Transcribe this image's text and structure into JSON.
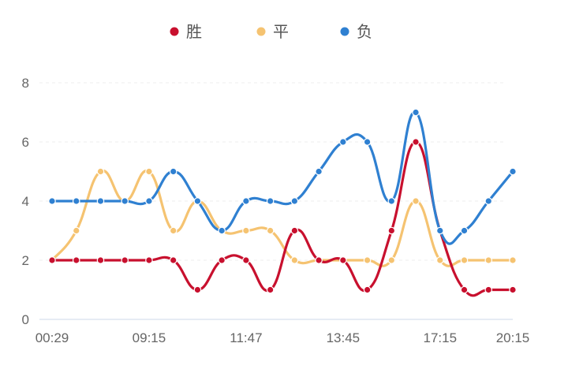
{
  "chart_data": {
    "type": "line",
    "smooth": true,
    "x": [
      "00:29",
      "",
      "",
      "",
      "09:15",
      "",
      "",
      "",
      "11:47",
      "",
      "",
      "",
      "13:45",
      "",
      "",
      "",
      "17:15",
      "",
      "",
      "20:15"
    ],
    "xtick_labels": [
      "00:29",
      "09:15",
      "11:47",
      "13:45",
      "17:15",
      "20:15"
    ],
    "xtick_indices": [
      0,
      4,
      8,
      12,
      16,
      19
    ],
    "yticks": [
      0,
      2,
      4,
      6,
      8
    ],
    "ylim": [
      0,
      8
    ],
    "grid": "horizontal-dashed",
    "legend": "top-center",
    "series": [
      {
        "name": "胜",
        "color": "#c8102e",
        "values": [
          2,
          2,
          2,
          2,
          2,
          2,
          1,
          2,
          2,
          1,
          3,
          2,
          2,
          1,
          3,
          6,
          3,
          1,
          1,
          1
        ]
      },
      {
        "name": "平",
        "color": "#f5c371",
        "values": [
          2,
          3,
          5,
          4,
          5,
          3,
          4,
          3,
          3,
          3,
          2,
          2,
          2,
          2,
          2,
          4,
          2,
          2,
          2,
          2
        ]
      },
      {
        "name": "负",
        "color": "#2f80d1",
        "values": [
          4,
          4,
          4,
          4,
          4,
          5,
          4,
          3,
          4,
          4,
          4,
          5,
          6,
          6,
          4,
          7,
          3,
          3,
          4,
          5
        ]
      }
    ]
  }
}
